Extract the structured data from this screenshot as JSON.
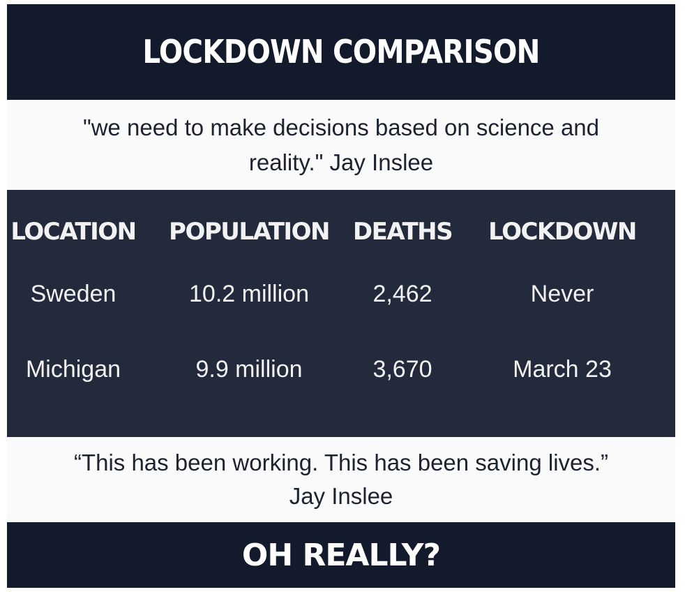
{
  "title": "LOCKDOWN COMPARISON",
  "quote_top": {
    "line1": "\"we need to make decisions based on science and",
    "line2": "reality.\" Jay Inslee"
  },
  "table": {
    "headers": [
      "LOCATION",
      "POPULATION",
      "DEATHS",
      "LOCKDOWN"
    ],
    "rows": [
      [
        "Sweden",
        "10.2 million",
        "2,462",
        "Never"
      ],
      [
        "Michigan",
        "9.9 million",
        "3,670",
        "March 23"
      ]
    ]
  },
  "quote_bottom": {
    "line1": "“This has been working. This has been saving lives.”",
    "line2": "Jay Inslee"
  },
  "footer": "OH REALLY?",
  "colors": {
    "dark_navy": "#121a2b",
    "table_bg": "#222a3b",
    "light_band": "#fafafa",
    "text_light": "#ffffff",
    "text_dark": "#1c2330"
  }
}
